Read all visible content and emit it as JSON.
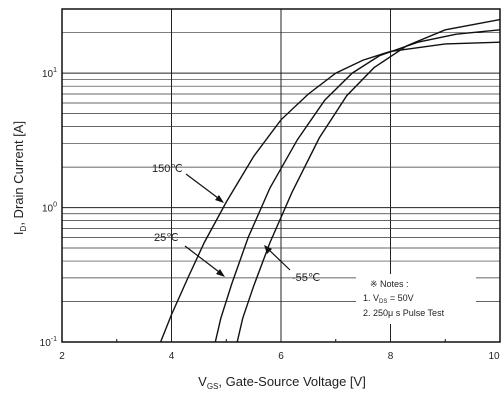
{
  "chart_data": {
    "type": "line",
    "xlabel_main": "V",
    "xlabel_sub": "GS",
    "xlabel_rest": ", Gate-Source Voltage [V]",
    "ylabel_main": "I",
    "ylabel_sub": "D",
    "ylabel_rest": ", Drain Current [A]",
    "xlim": [
      2,
      10
    ],
    "ylim": [
      0.1,
      30
    ],
    "yscale": "log",
    "x_ticks": [
      {
        "value": 2,
        "label": "2"
      },
      {
        "value": 4,
        "label": "4"
      },
      {
        "value": 6,
        "label": "6"
      },
      {
        "value": 8,
        "label": "8"
      },
      {
        "value": 10,
        "label": "10"
      }
    ],
    "y_ticks": [
      {
        "value": 0.1,
        "base": "10",
        "exp": "-1"
      },
      {
        "value": 1,
        "base": "10",
        "exp": "0"
      },
      {
        "value": 10,
        "base": "10",
        "exp": "1"
      }
    ],
    "series": [
      {
        "name": "150℃",
        "x": [
          3.8,
          4.0,
          4.3,
          4.6,
          5.0,
          5.5,
          6.0,
          6.5,
          7.0,
          7.5,
          8.0,
          9.0,
          10.0
        ],
        "y": [
          0.1,
          0.16,
          0.3,
          0.55,
          1.1,
          2.4,
          4.5,
          7.0,
          10.0,
          12.5,
          14.5,
          16.5,
          17.0
        ]
      },
      {
        "name": "25℃",
        "x": [
          4.8,
          4.9,
          5.1,
          5.4,
          5.8,
          6.3,
          6.8,
          7.3,
          7.8,
          8.5,
          9.2,
          10.0
        ],
        "y": [
          0.1,
          0.15,
          0.27,
          0.6,
          1.4,
          3.2,
          6.3,
          10.0,
          13.5,
          17.0,
          19.5,
          21.0
        ]
      },
      {
        "name": "-55℃",
        "x": [
          5.2,
          5.3,
          5.5,
          5.8,
          6.2,
          6.7,
          7.2,
          7.7,
          8.3,
          9.0,
          10.0
        ],
        "y": [
          0.1,
          0.15,
          0.26,
          0.55,
          1.3,
          3.3,
          6.8,
          11.0,
          16.0,
          21.0,
          25.0
        ]
      }
    ],
    "annotations": {
      "notes_title": "※ Notes :",
      "note1_main": "1. V",
      "note1_sub": "DS",
      "note1_rest": " = 50V",
      "note2": "2. 250μ s Pulse Test"
    },
    "grid": true
  }
}
